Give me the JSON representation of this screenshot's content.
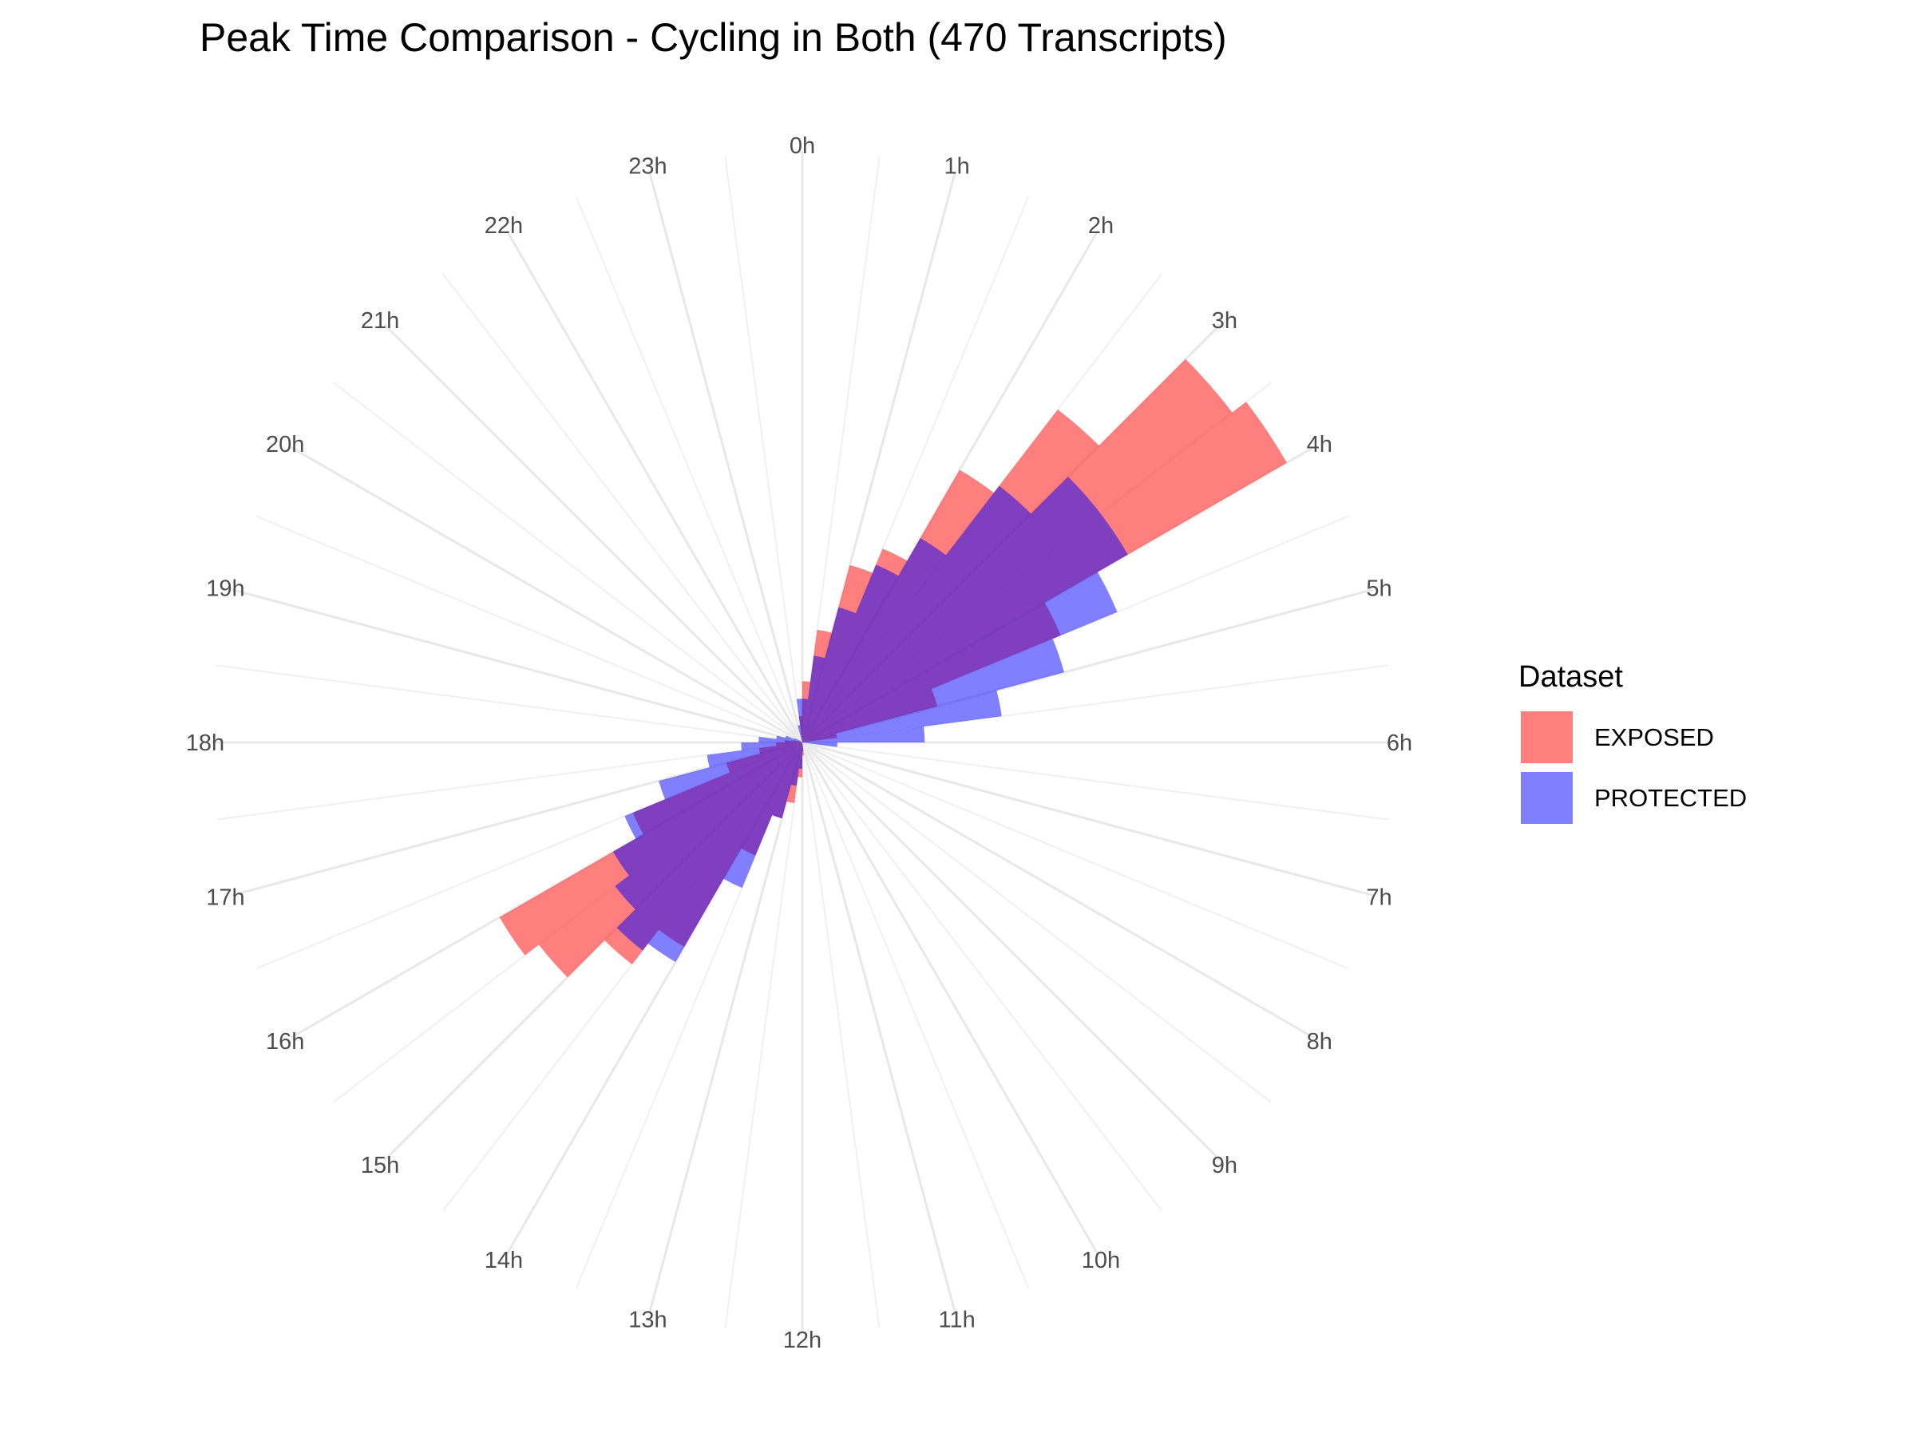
{
  "chart_data": {
    "type": "bar",
    "coord": "polar",
    "title": "Peak Time Comparison - Cycling in Both (470 Transcripts)",
    "xlabel": "",
    "ylabel": "",
    "grid": true,
    "legend": {
      "title": "Dataset",
      "position": "right",
      "entries": [
        "EXPOSED",
        "PROTECTED"
      ]
    },
    "hour_labels": [
      "0h",
      "1h",
      "2h",
      "3h",
      "4h",
      "5h",
      "6h",
      "7h",
      "8h",
      "9h",
      "10h",
      "11h",
      "12h",
      "13h",
      "14h",
      "15h",
      "16h",
      "17h",
      "18h",
      "19h",
      "20h",
      "21h",
      "22h",
      "23h"
    ],
    "bin_width_hours": 0.5,
    "x": [
      0.0,
      0.5,
      1.0,
      1.5,
      2.0,
      2.5,
      3.0,
      3.5,
      4.0,
      4.5,
      5.0,
      5.5,
      6.0,
      6.5,
      7.0,
      7.5,
      8.0,
      8.5,
      9.0,
      9.5,
      10.0,
      10.5,
      11.0,
      11.5,
      12.0,
      12.5,
      13.0,
      13.5,
      14.0,
      14.5,
      15.0,
      15.5,
      16.0,
      16.5,
      17.0,
      17.5,
      18.0,
      18.5,
      19.0,
      19.5,
      20.0,
      20.5,
      21.0,
      21.5,
      22.0,
      22.5,
      23.0,
      23.5
    ],
    "series": [
      {
        "name": "EXPOSED",
        "color": "#ff0000",
        "opacity": 0.5,
        "values": [
          7,
          13,
          21,
          24,
          36,
          48,
          62,
          64,
          32,
          16,
          4,
          0.4,
          0,
          0,
          0,
          0,
          0,
          0,
          0,
          0,
          0,
          0,
          0,
          1.5,
          4,
          7,
          9,
          14,
          27,
          32,
          38,
          40,
          21,
          9,
          5,
          3,
          2,
          1,
          0.5,
          0,
          0,
          0,
          0,
          0,
          0,
          0,
          0,
          3
        ]
      },
      {
        "name": "PROTECTED",
        "color": "#0000ff",
        "opacity": 0.5,
        "values": [
          5,
          10,
          16,
          22,
          27,
          37,
          43,
          43,
          39,
          31,
          23,
          14,
          4,
          0,
          0,
          0,
          0,
          0,
          0,
          0,
          0,
          0,
          0,
          1,
          3,
          5,
          9,
          18,
          29,
          30,
          27,
          25,
          22,
          17,
          11,
          7,
          5,
          3,
          2,
          1,
          0.5,
          0,
          0,
          0,
          0,
          0,
          2,
          5
        ]
      }
    ]
  }
}
